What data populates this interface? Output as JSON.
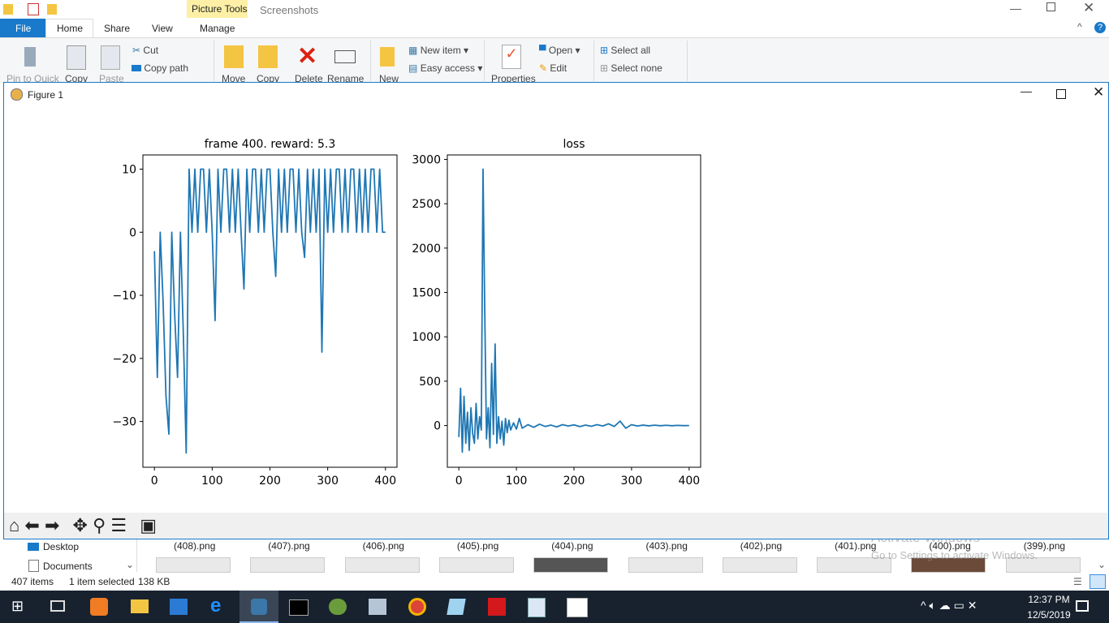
{
  "ribbon": {
    "contextual_tab": "Picture Tools",
    "window_title": "Screenshots",
    "tabs": [
      "File",
      "Home",
      "Share",
      "View",
      "Manage"
    ],
    "buttons": [
      "Pin to Quick",
      "Copy",
      "Paste",
      "Cut",
      "Copy path",
      "Move",
      "Copy",
      "Delete",
      "Rename",
      "New",
      "New item",
      "Easy access",
      "Properties",
      "Open",
      "Edit",
      "Select all",
      "Select none"
    ]
  },
  "figure": {
    "title": "Figure 1"
  },
  "chart_data": [
    {
      "type": "line",
      "title": "frame 400. reward: 5.3",
      "color": "#1f77b4",
      "x": [
        0,
        5,
        10,
        15,
        20,
        25,
        30,
        35,
        40,
        45,
        50,
        55,
        60,
        65,
        70,
        75,
        80,
        85,
        90,
        95,
        100,
        105,
        110,
        115,
        120,
        125,
        130,
        135,
        140,
        145,
        150,
        155,
        160,
        165,
        170,
        175,
        180,
        185,
        190,
        195,
        200,
        205,
        210,
        215,
        220,
        225,
        230,
        235,
        240,
        245,
        250,
        255,
        260,
        265,
        270,
        275,
        280,
        285,
        290,
        295,
        300,
        305,
        310,
        315,
        320,
        325,
        330,
        335,
        340,
        345,
        350,
        355,
        360,
        365,
        370,
        375,
        380,
        385,
        390,
        395,
        400
      ],
      "values": [
        -3,
        -23,
        0,
        -11,
        -26,
        -32,
        0,
        -13,
        -23,
        0,
        -16,
        -35,
        10,
        0,
        10,
        0,
        10,
        10,
        0,
        10,
        0,
        -14,
        10,
        0,
        10,
        10,
        0,
        10,
        0,
        10,
        0,
        -9,
        10,
        0,
        10,
        10,
        0,
        10,
        0,
        10,
        10,
        0,
        -7,
        10,
        0,
        10,
        0,
        10,
        10,
        0,
        10,
        0,
        -4,
        10,
        0,
        10,
        0,
        10,
        -19,
        10,
        0,
        10,
        0,
        10,
        10,
        0,
        10,
        0,
        10,
        10,
        0,
        10,
        0,
        10,
        0,
        10,
        10,
        0,
        10,
        0,
        0
      ],
      "xlim": [
        -20,
        420
      ],
      "ylim": [
        -37.25,
        12.25
      ],
      "xticks": [
        0,
        100,
        200,
        300,
        400
      ],
      "yticks": [
        {
          "value": -30,
          "label": "−30"
        },
        {
          "value": -20,
          "label": "−20"
        },
        {
          "value": -10,
          "label": "−10"
        },
        0,
        10
      ]
    },
    {
      "type": "line",
      "title": "loss",
      "color": "#1f77b4",
      "x": [
        0,
        3,
        6,
        9,
        12,
        15,
        18,
        21,
        24,
        27,
        30,
        33,
        36,
        39,
        42,
        45,
        48,
        51,
        54,
        57,
        60,
        63,
        66,
        69,
        72,
        75,
        78,
        81,
        84,
        87,
        90,
        95,
        100,
        105,
        110,
        120,
        130,
        140,
        150,
        160,
        170,
        180,
        190,
        200,
        210,
        220,
        230,
        240,
        250,
        260,
        270,
        280,
        290,
        300,
        310,
        320,
        330,
        340,
        350,
        360,
        370,
        380,
        390,
        400
      ],
      "values": [
        -130,
        420,
        -300,
        330,
        -200,
        150,
        -280,
        200,
        -90,
        -200,
        250,
        -150,
        100,
        -50,
        2890,
        1290,
        -150,
        200,
        -250,
        700,
        -100,
        920,
        -200,
        100,
        -150,
        50,
        -220,
        80,
        -80,
        60,
        -50,
        30,
        -40,
        80,
        -30,
        10,
        -20,
        15,
        -10,
        5,
        -15,
        10,
        -5,
        8,
        -12,
        5,
        -8,
        10,
        -5,
        20,
        -10,
        50,
        -30,
        10,
        -5,
        5,
        -3,
        4,
        -2,
        3,
        -2,
        2,
        -1,
        0
      ],
      "xlim": [
        -20,
        420
      ],
      "ylim": [
        -470,
        3050
      ],
      "xticks": [
        0,
        100,
        200,
        300,
        400
      ],
      "yticks": [
        0,
        500,
        1000,
        1500,
        2000,
        2500,
        3000
      ]
    }
  ],
  "explorer": {
    "nav": [
      "Desktop",
      "Documents"
    ],
    "files": [
      "(408).png",
      "(407).png",
      "(406).png",
      "(405).png",
      "(404).png",
      "(403).png",
      "(402).png",
      "(401).png",
      "(400).png",
      "(399).png"
    ],
    "watermark": [
      "Activate Windows",
      "Go to Settings to activate Windows."
    ],
    "status": [
      "407 items",
      "1 item selected",
      "138 KB"
    ]
  },
  "taskbar": {
    "time": "12:37 PM",
    "date": "12/5/2019"
  }
}
